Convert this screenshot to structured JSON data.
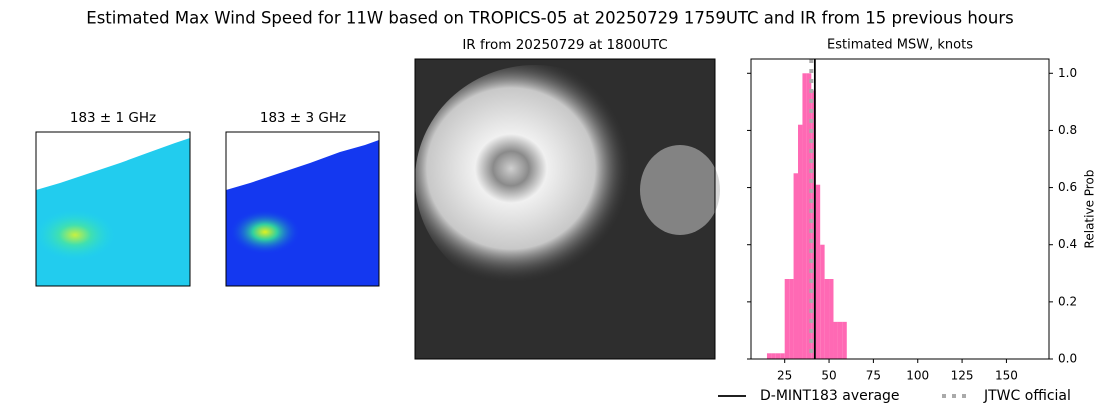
{
  "figure": {
    "title": "Estimated Max Wind Speed for 11W based on TROPICS-05 at 20250729 1759UTC and IR from 15 previous hours",
    "panels": [
      "183 ± 1 GHz",
      "183 ± 3 GHz",
      "IR from 20250729 at 1800UTC"
    ]
  },
  "chart_data": {
    "type": "histogram",
    "title": "Estimated MSW, knots",
    "y_label": "Relative Prob",
    "bins": [
      15,
      17.5,
      20,
      22.5,
      25,
      27.5,
      30,
      32.5,
      35,
      37.5,
      40,
      42.5,
      45,
      47.5,
      50,
      52.5,
      55,
      57.5,
      60
    ],
    "values": [
      0.02,
      0.02,
      0.02,
      0.02,
      0.28,
      0.28,
      0.65,
      0.82,
      1.0,
      1.0,
      0.94,
      0.61,
      0.4,
      0.28,
      0.28,
      0.13,
      0.13,
      0.13
    ],
    "color": "#ff69b4",
    "xlim": [
      6,
      174
    ],
    "xticks": [
      25,
      50,
      75,
      100,
      125,
      150
    ],
    "ylim": [
      0,
      1.05
    ],
    "yticks": [
      {
        "value": 0,
        "label": "0.0"
      },
      {
        "value": 0.2,
        "label": "0.2"
      },
      {
        "value": 0.4,
        "label": "0.4"
      },
      {
        "value": 0.6,
        "label": "0.6"
      },
      {
        "value": 0.8,
        "label": "0.8"
      },
      {
        "value": 1.0,
        "label": "1.0"
      }
    ],
    "reference_lines": [
      {
        "name": "D-MINT183 average",
        "value": 42,
        "color": "#000000",
        "style": "solid"
      },
      {
        "name": "JTWC official",
        "value": 40,
        "color": "#aaaaaa",
        "style": "dotted"
      }
    ]
  }
}
